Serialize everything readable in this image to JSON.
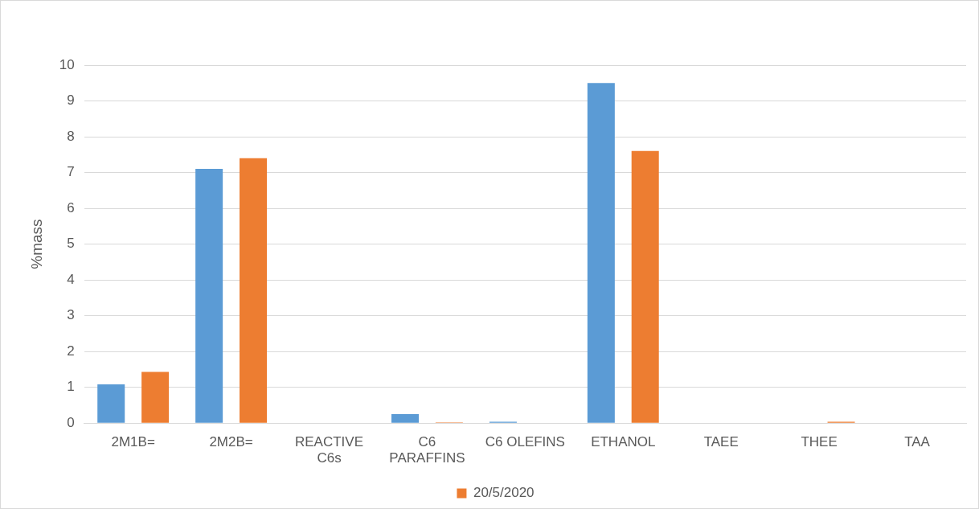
{
  "chart_data": {
    "type": "bar",
    "ylabel": "%mass",
    "categories": [
      "2M1B=",
      "2M2B=",
      "REACTIVE C6s",
      "C6 PARAFFINS",
      "C6 OLEFINS",
      "ETHANOL",
      "TAEE",
      "THEE",
      "TAA"
    ],
    "series": [
      {
        "color": "#5b9bd5",
        "values": [
          1.08,
          7.1,
          0,
          0.25,
          0.04,
          9.5,
          0,
          0,
          0
        ]
      },
      {
        "name": "20/5/2020",
        "color": "#ed7d31",
        "values": [
          1.43,
          7.4,
          0,
          0.02,
          0,
          7.6,
          0,
          0.04,
          0
        ]
      }
    ],
    "ylim": [
      0,
      10
    ],
    "yticks": [
      0,
      1,
      2,
      3,
      4,
      5,
      6,
      7,
      8,
      9,
      10
    ],
    "grid": "y",
    "legend": "bottom"
  }
}
